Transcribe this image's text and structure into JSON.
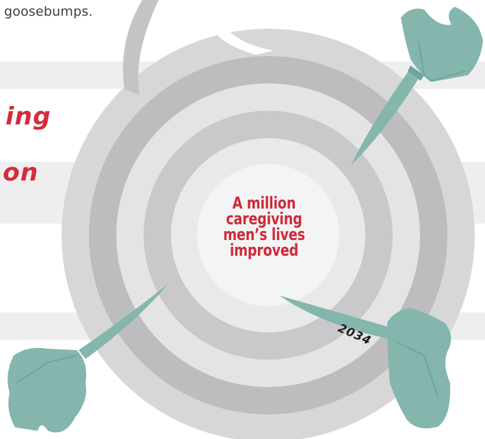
{
  "intro_text": "goosebumps.",
  "heading_fragments": [
    "ing",
    "on"
  ],
  "target": {
    "goal_lines": [
      "A million",
      "caregiving",
      "men’s lives",
      "improved"
    ],
    "year_label": "2034"
  },
  "colors": {
    "accent_red": "#d62b3b",
    "dart_teal": "#84b6ad",
    "ring_dark": "#bdbdbf",
    "ring_light": "#e4e4e5",
    "stripe": "#eeeeef"
  },
  "icons": [
    "dart-icon",
    "dart-icon",
    "dart-icon"
  ]
}
